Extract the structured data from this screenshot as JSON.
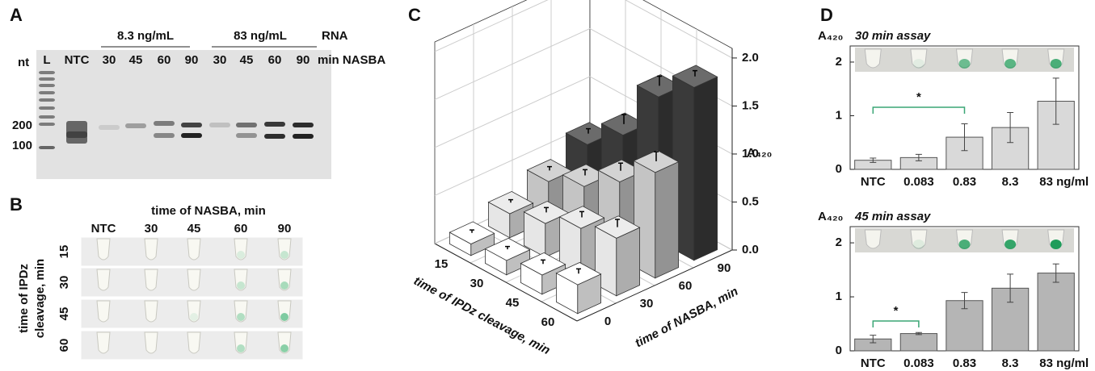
{
  "panels": {
    "A": {
      "label": "A",
      "groups": [
        "8.3 ng/mL",
        "83 ng/mL"
      ],
      "rna": "RNA",
      "nt": "nt",
      "ladder": "L",
      "ntc": "NTC",
      "lanes": [
        "30",
        "45",
        "60",
        "90",
        "30",
        "45",
        "60",
        "90"
      ],
      "lane_unit": "min NASBA",
      "markers": [
        "200",
        "100"
      ]
    },
    "B": {
      "label": "B",
      "title": "time of NASBA, min",
      "columns": [
        "NTC",
        "30",
        "45",
        "60",
        "90"
      ],
      "row_title": [
        "time of IPDz",
        "cleavage, min"
      ],
      "rows": [
        "15",
        "30",
        "45",
        "60"
      ]
    },
    "C": {
      "label": "C"
    },
    "D": {
      "label": "D"
    }
  },
  "chart_data": [
    {
      "type": "bar3d",
      "x_label": "time of IPDz cleavage, min",
      "z_label": "time of NASBA, min",
      "y_label": "A₄₂₀",
      "categories": [
        "15",
        "30",
        "45",
        "60"
      ],
      "depth_categories": [
        "0",
        "30",
        "60",
        "90"
      ],
      "series": [
        {
          "color": "#ffffff",
          "values": [
            0.12,
            0.15,
            0.2,
            0.3
          ],
          "errors": [
            0.03,
            0.03,
            0.04,
            0.05
          ]
        },
        {
          "color": "#e6e6e6",
          "values": [
            0.25,
            0.35,
            0.5,
            0.6
          ],
          "errors": [
            0.03,
            0.05,
            0.06,
            0.08
          ]
        },
        {
          "color": "#c4c4c4",
          "values": [
            0.4,
            0.55,
            0.8,
            1.1
          ],
          "errors": [
            0.04,
            0.06,
            0.08,
            0.1
          ]
        },
        {
          "color": "#3a3a3a",
          "values": [
            0.6,
            0.9,
            1.5,
            1.8
          ],
          "errors": [
            0.05,
            0.1,
            0.1,
            0.06
          ]
        }
      ],
      "ylim": [
        0,
        2.1
      ],
      "yticks": [
        {
          "value": 0,
          "label": "0.0"
        },
        {
          "value": 0.5,
          "label": "0.5"
        },
        {
          "value": 1,
          "label": "1.0"
        },
        {
          "value": 1.5,
          "label": "1.5"
        },
        {
          "value": 2,
          "label": "2.0"
        }
      ],
      "grid": true
    },
    {
      "type": "bar",
      "title": "30 min assay",
      "y_label": "A₄₂₀",
      "categories": [
        "NTC",
        "0.083",
        "0.83",
        "8.3",
        "83 ng/ml"
      ],
      "values": [
        0.17,
        0.22,
        0.6,
        0.78,
        1.27
      ],
      "errors": [
        0.04,
        0.06,
        0.25,
        0.28,
        0.43
      ],
      "color": "#d9d9d9",
      "ylim": [
        0,
        2.3
      ],
      "yticks": [
        0,
        1,
        2
      ],
      "annotation": "*"
    },
    {
      "type": "bar",
      "title": "45 min assay",
      "y_label": "A₄₂₀",
      "categories": [
        "NTC",
        "0.083",
        "0.83",
        "8.3",
        "83 ng/ml"
      ],
      "values": [
        0.22,
        0.32,
        0.93,
        1.16,
        1.44
      ],
      "errors": [
        0.07,
        0.02,
        0.15,
        0.26,
        0.17
      ],
      "color": "#b5b5b5",
      "ylim": [
        0,
        2.3
      ],
      "yticks": [
        0,
        1,
        2
      ],
      "annotation": "*"
    }
  ]
}
